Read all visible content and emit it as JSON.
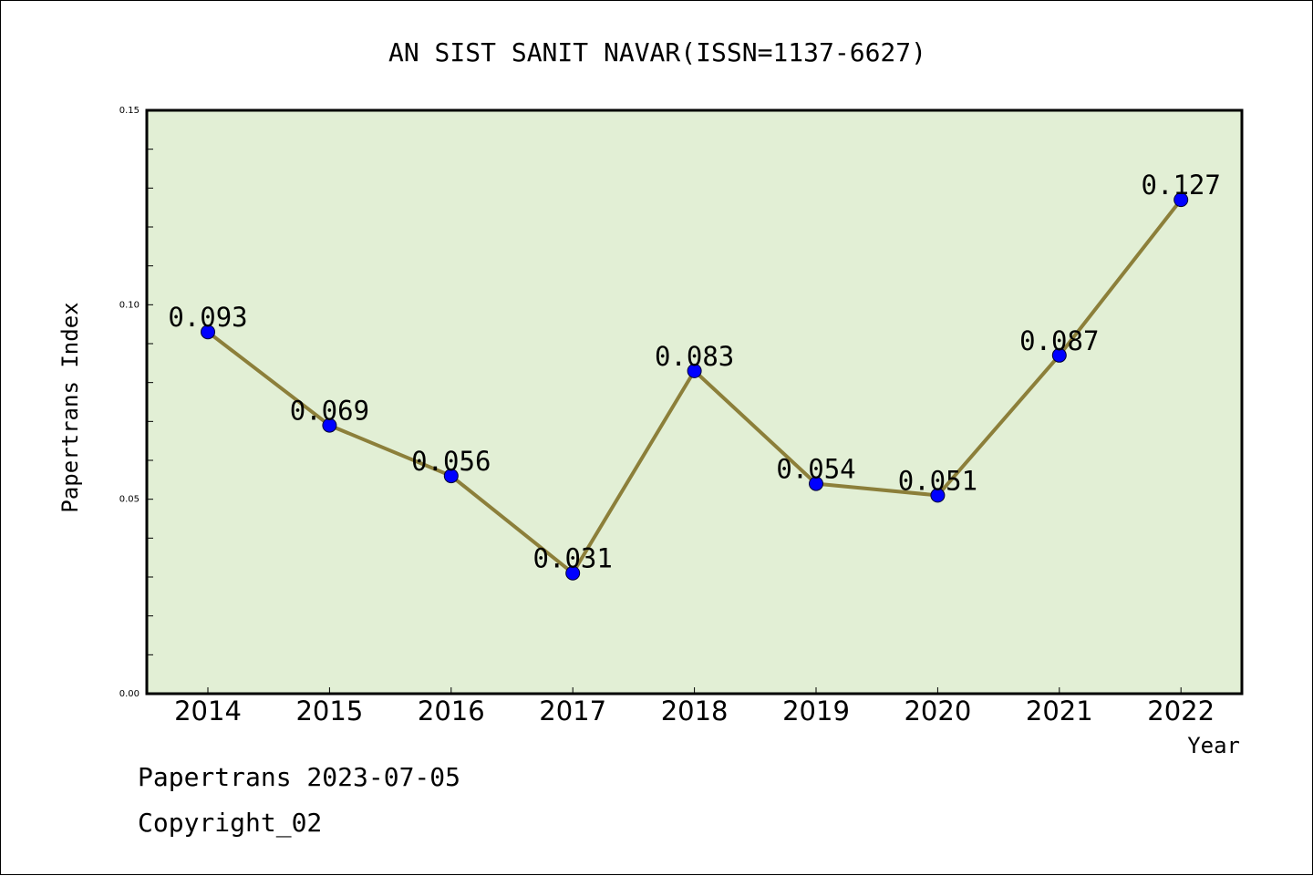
{
  "chart_data": {
    "type": "line",
    "title": "AN SIST SANIT NAVAR(ISSN=1137-6627)",
    "xlabel": "Year",
    "ylabel": "Papertrans Index",
    "categories": [
      "2014",
      "2015",
      "2016",
      "2017",
      "2018",
      "2019",
      "2020",
      "2021",
      "2022"
    ],
    "values": [
      0.093,
      0.069,
      0.056,
      0.031,
      0.083,
      0.054,
      0.051,
      0.087,
      0.127
    ],
    "data_labels": [
      "0.093",
      "0.069",
      "0.056",
      "0.031",
      "0.083",
      "0.054",
      "0.051",
      "0.087",
      "0.127"
    ],
    "ylim": [
      0,
      0.15
    ],
    "yticks": [
      0.0,
      0.05,
      0.1,
      0.15
    ],
    "ytick_labels": [
      "0.00",
      "0.05",
      "0.10",
      "0.15"
    ],
    "grid": false,
    "colors": {
      "plot_background": "#e2efd5",
      "line": "#8c7f3a",
      "marker": "#0000ff"
    }
  },
  "footer": {
    "line1": "Papertrans 2023-07-05",
    "line2": "Copyright_02"
  }
}
